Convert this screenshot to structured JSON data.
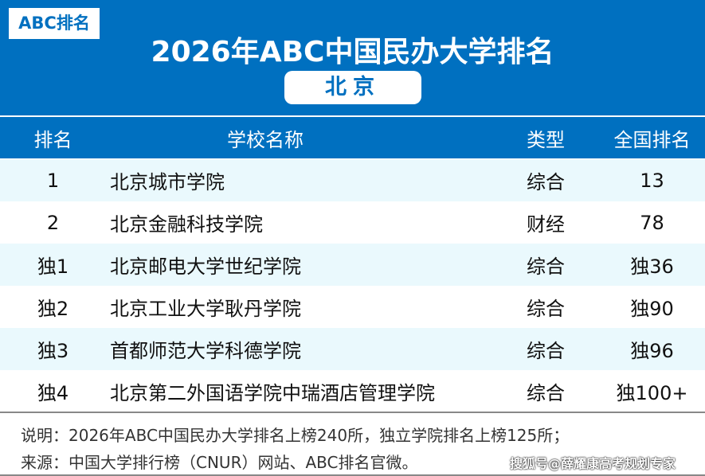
{
  "badge": "ABC排名",
  "title": "2026年ABC中国民办大学排名",
  "city": "北京",
  "columns": [
    "排名",
    "学校名称",
    "类型",
    "全国排名"
  ],
  "rows": [
    {
      "rank": "1",
      "name": "北京城市学院",
      "type": "综合",
      "national": "13"
    },
    {
      "rank": "2",
      "name": "北京金融科技学院",
      "type": "财经",
      "national": "78"
    },
    {
      "rank": "独1",
      "name": "北京邮电大学世纪学院",
      "type": "综合",
      "national": "独36"
    },
    {
      "rank": "独2",
      "name": "北京工业大学耿丹学院",
      "type": "综合",
      "national": "独90"
    },
    {
      "rank": "独3",
      "name": "首都师范大学科德学院",
      "type": "综合",
      "national": "独96"
    },
    {
      "rank": "独4",
      "name": "北京第二外国语学院中瑞酒店管理学院",
      "type": "综合",
      "national": "独100+"
    }
  ],
  "footer": {
    "note": "说明：2026年ABC中国民办大学排名上榜240所，独立学院排名上榜125所；",
    "source": "来源：中国大学排行榜（CNUR）网站、ABC排名官微。",
    "watermark": "搜狐号@薛耀康高考规划专家"
  },
  "colors": {
    "brand": "#0070C0",
    "row_alt": "#EAF9FD"
  }
}
